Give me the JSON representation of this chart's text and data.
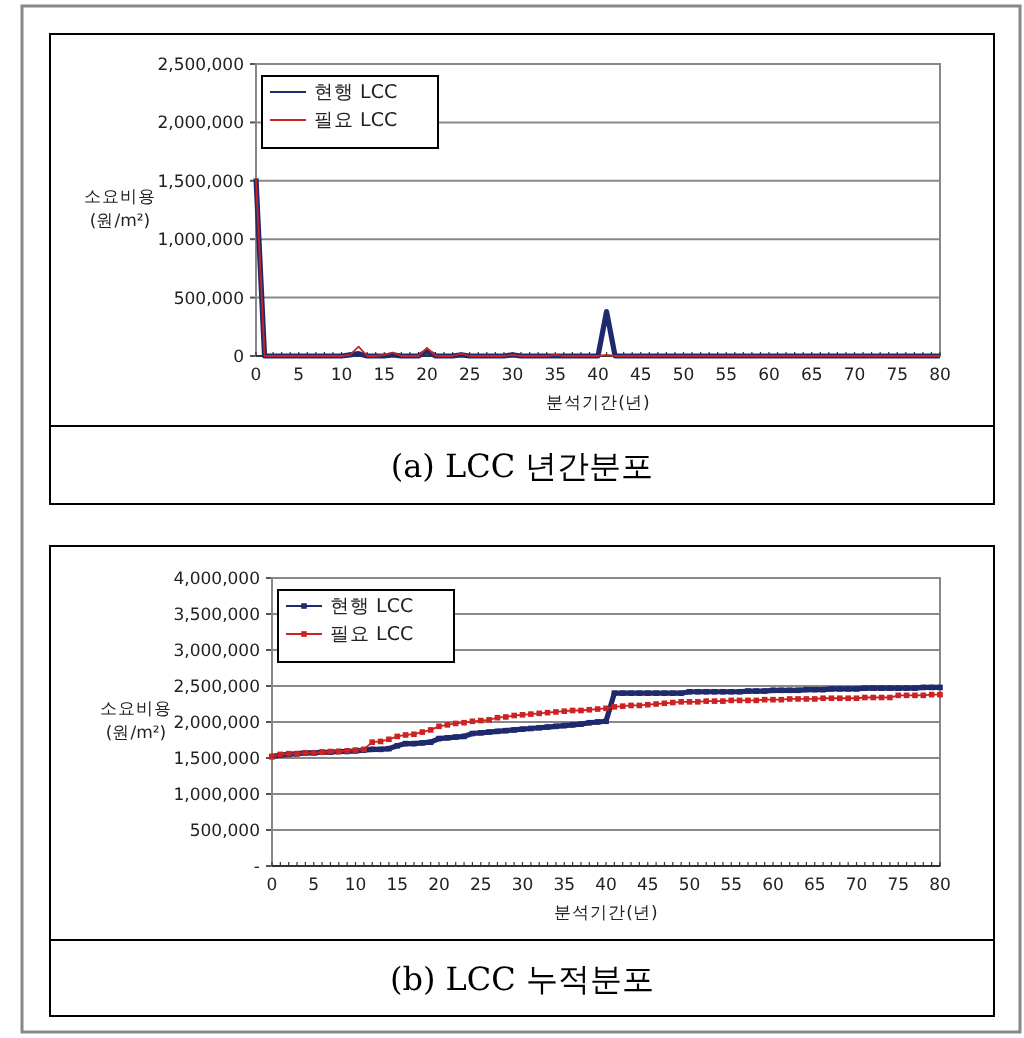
{
  "chart_data": [
    {
      "type": "line",
      "title": "(a) LCC 년간분포",
      "xlabel": "분석기간(년)",
      "ylabel": "소요비용 (원/m²)",
      "x": [
        0,
        1,
        2,
        3,
        4,
        5,
        6,
        7,
        8,
        9,
        10,
        11,
        12,
        13,
        14,
        15,
        16,
        17,
        18,
        19,
        20,
        21,
        22,
        23,
        24,
        25,
        26,
        27,
        28,
        29,
        30,
        31,
        32,
        33,
        34,
        35,
        36,
        37,
        38,
        39,
        40,
        41,
        42,
        43,
        44,
        45,
        46,
        47,
        48,
        49,
        50,
        51,
        52,
        53,
        54,
        55,
        56,
        57,
        58,
        59,
        60,
        61,
        62,
        63,
        64,
        65,
        66,
        67,
        68,
        69,
        70,
        71,
        72,
        73,
        74,
        75,
        76,
        77,
        78,
        79,
        80
      ],
      "series": [
        {
          "name": "현행 LCC",
          "color": "#1f2a6e",
          "values": [
            1520000,
            0,
            0,
            0,
            0,
            0,
            0,
            0,
            0,
            0,
            0,
            10000,
            20000,
            0,
            0,
            0,
            10000,
            0,
            0,
            0,
            40000,
            0,
            0,
            0,
            10000,
            0,
            0,
            0,
            0,
            0,
            10000,
            0,
            0,
            0,
            0,
            0,
            0,
            0,
            0,
            0,
            0,
            380000,
            0,
            0,
            0,
            0,
            0,
            0,
            0,
            0,
            0,
            0,
            0,
            0,
            0,
            0,
            0,
            0,
            0,
            0,
            0,
            0,
            0,
            0,
            0,
            0,
            0,
            0,
            0,
            0,
            0,
            0,
            0,
            0,
            0,
            0,
            0,
            0,
            0,
            0,
            0
          ]
        },
        {
          "name": "필요 LCC",
          "color": "#cc2222",
          "values": [
            1520000,
            0,
            0,
            0,
            0,
            0,
            0,
            0,
            0,
            0,
            0,
            10000,
            80000,
            0,
            0,
            10000,
            30000,
            0,
            0,
            0,
            70000,
            0,
            0,
            0,
            20000,
            0,
            0,
            0,
            0,
            0,
            10000,
            0,
            0,
            0,
            0,
            10000,
            0,
            0,
            0,
            0,
            0,
            10000,
            0,
            0,
            0,
            0,
            0,
            0,
            0,
            0,
            0,
            0,
            0,
            0,
            0,
            0,
            0,
            0,
            0,
            0,
            0,
            0,
            0,
            0,
            0,
            0,
            0,
            0,
            0,
            0,
            0,
            0,
            0,
            0,
            0,
            0,
            0,
            0,
            0,
            0,
            0
          ]
        }
      ],
      "xlim": [
        0,
        80
      ],
      "xticks": [
        0,
        5,
        10,
        15,
        20,
        25,
        30,
        35,
        40,
        45,
        50,
        55,
        60,
        65,
        70,
        75,
        80
      ],
      "ylim": [
        0,
        2500000
      ],
      "yticks": [
        0,
        {
          "value": 500000,
          "label": "500,000"
        },
        {
          "value": 1000000,
          "label": "1,000,000"
        },
        {
          "value": 1500000,
          "label": "1,500,000"
        },
        {
          "value": 2000000,
          "label": "2,000,000"
        },
        {
          "value": 2500000,
          "label": "2,500,000"
        }
      ],
      "grid": "y",
      "legend": "top left"
    },
    {
      "type": "line",
      "title": "(b) LCC 누적분포",
      "xlabel": "분석기간(년)",
      "ylabel": "소요비용 (원/m²)",
      "x": [
        0,
        1,
        2,
        3,
        4,
        5,
        6,
        7,
        8,
        9,
        10,
        11,
        12,
        13,
        14,
        15,
        16,
        17,
        18,
        19,
        20,
        21,
        22,
        23,
        24,
        25,
        26,
        27,
        28,
        29,
        30,
        31,
        32,
        33,
        34,
        35,
        36,
        37,
        38,
        39,
        40,
        41,
        42,
        43,
        44,
        45,
        46,
        47,
        48,
        49,
        50,
        51,
        52,
        53,
        54,
        55,
        56,
        57,
        58,
        59,
        60,
        61,
        62,
        63,
        64,
        65,
        66,
        67,
        68,
        69,
        70,
        71,
        72,
        73,
        74,
        75,
        76,
        77,
        78,
        79,
        80
      ],
      "series": [
        {
          "name": "현행 LCC",
          "color": "#1f2a6e",
          "values": [
            1520000,
            1540000,
            1550000,
            1560000,
            1570000,
            1570000,
            1580000,
            1580000,
            1590000,
            1590000,
            1600000,
            1610000,
            1620000,
            1620000,
            1630000,
            1670000,
            1700000,
            1700000,
            1710000,
            1720000,
            1770000,
            1780000,
            1790000,
            1800000,
            1840000,
            1850000,
            1860000,
            1870000,
            1880000,
            1890000,
            1900000,
            1910000,
            1920000,
            1930000,
            1940000,
            1950000,
            1960000,
            1970000,
            1990000,
            2000000,
            2010000,
            2400000,
            2400000,
            2400000,
            2400000,
            2400000,
            2400000,
            2400000,
            2400000,
            2400000,
            2420000,
            2420000,
            2420000,
            2420000,
            2420000,
            2420000,
            2420000,
            2430000,
            2430000,
            2430000,
            2440000,
            2440000,
            2440000,
            2440000,
            2450000,
            2450000,
            2450000,
            2460000,
            2460000,
            2460000,
            2460000,
            2470000,
            2470000,
            2470000,
            2470000,
            2470000,
            2470000,
            2470000,
            2480000,
            2480000,
            2480000
          ]
        },
        {
          "name": "필요 LCC",
          "color": "#cc2222",
          "values": [
            1520000,
            1550000,
            1560000,
            1560000,
            1570000,
            1570000,
            1580000,
            1590000,
            1590000,
            1600000,
            1610000,
            1620000,
            1720000,
            1730000,
            1760000,
            1800000,
            1820000,
            1830000,
            1860000,
            1890000,
            1940000,
            1960000,
            1980000,
            1990000,
            2010000,
            2020000,
            2030000,
            2060000,
            2070000,
            2090000,
            2100000,
            2110000,
            2120000,
            2130000,
            2140000,
            2150000,
            2160000,
            2160000,
            2170000,
            2180000,
            2190000,
            2210000,
            2220000,
            2230000,
            2230000,
            2240000,
            2250000,
            2260000,
            2270000,
            2280000,
            2280000,
            2280000,
            2290000,
            2290000,
            2290000,
            2300000,
            2300000,
            2300000,
            2300000,
            2310000,
            2310000,
            2310000,
            2320000,
            2320000,
            2320000,
            2320000,
            2330000,
            2330000,
            2330000,
            2330000,
            2330000,
            2340000,
            2340000,
            2340000,
            2340000,
            2370000,
            2370000,
            2370000,
            2370000,
            2380000,
            2380000
          ]
        }
      ],
      "xlim": [
        0,
        80
      ],
      "xticks": [
        0,
        5,
        10,
        15,
        20,
        25,
        30,
        35,
        40,
        45,
        50,
        55,
        60,
        65,
        70,
        75,
        80
      ],
      "ylim": [
        0,
        4000000
      ],
      "yticks": [
        {
          "value": 0,
          "label": "-"
        },
        {
          "value": 500000,
          "label": "500,000"
        },
        {
          "value": 1000000,
          "label": "1,000,000"
        },
        {
          "value": 1500000,
          "label": "1,500,000"
        },
        {
          "value": 2000000,
          "label": "2,000,000"
        },
        {
          "value": 2500000,
          "label": "2,500,000"
        },
        {
          "value": 3000000,
          "label": "3,000,000"
        },
        {
          "value": 3500000,
          "label": "3,500,000"
        },
        {
          "value": 4000000,
          "label": "4,000,000"
        }
      ],
      "grid": "y",
      "legend": "top left",
      "marker": "square"
    }
  ]
}
